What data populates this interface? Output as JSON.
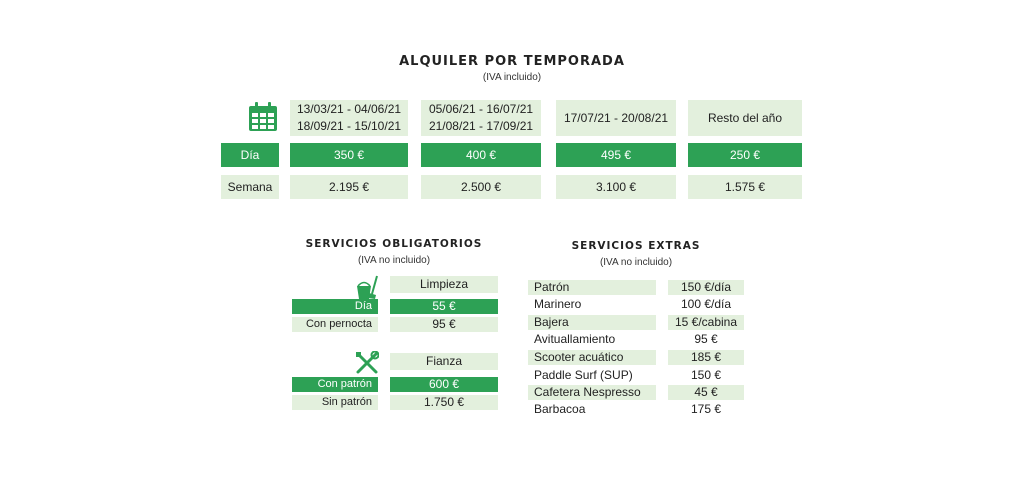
{
  "temporada": {
    "title": "ALQUILER POR TEMPORADA",
    "subtitle": "(IVA incluido)",
    "icon": "calendar-icon",
    "periods": [
      [
        "13/03/21 - 04/06/21",
        "18/09/21 - 15/10/21"
      ],
      [
        "05/06/21 - 16/07/21",
        "21/08/21 - 17/09/21"
      ],
      [
        "17/07/21 - 20/08/21"
      ],
      [
        "Resto del año"
      ]
    ],
    "row_dia_label": "Día",
    "row_semana_label": "Semana",
    "dia": [
      "350 €",
      "400 €",
      "495 €",
      "250 €"
    ],
    "semana": [
      "2.195 €",
      "2.500 €",
      "3.100 €",
      "1.575 €"
    ]
  },
  "obligatorios": {
    "title": "SERVICIOS OBLIGATORIOS",
    "subtitle": "(IVA no incluido)",
    "limpieza": {
      "icon": "cleaning-bucket-icon",
      "header": "Limpieza",
      "rows": [
        {
          "label": "Día",
          "value": "55 €"
        },
        {
          "label": "Con pernocta",
          "value": "95 €"
        }
      ]
    },
    "fianza": {
      "icon": "tools-icon",
      "header": "Fianza",
      "rows": [
        {
          "label": "Con patrón",
          "value": "600 €"
        },
        {
          "label": "Sin patrón",
          "value": "1.750 €"
        }
      ]
    }
  },
  "extras": {
    "title": "SERVICIOS EXTRAS",
    "subtitle": "(IVA no incluido)",
    "items": [
      {
        "name": "Patrón",
        "price": "150 €/día"
      },
      {
        "name": "Marinero",
        "price": "100 €/día"
      },
      {
        "name": "Bajera",
        "price": "15 €/cabina"
      },
      {
        "name": "Avituallamiento",
        "price": "95 €"
      },
      {
        "name": "Scooter acuático",
        "price": "185 €"
      },
      {
        "name": "Paddle Surf (SUP)",
        "price": "150 €"
      },
      {
        "name": "Cafetera Nespresso",
        "price": "45 €"
      },
      {
        "name": "Barbacoa",
        "price": "175 €"
      }
    ]
  },
  "colors": {
    "green": "#2da155",
    "light_green": "#e3f0dd"
  }
}
